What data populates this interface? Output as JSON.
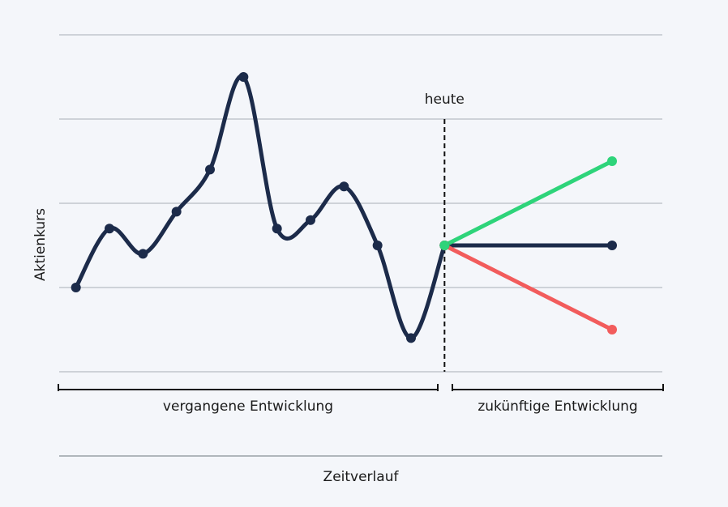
{
  "chart_data": {
    "type": "line",
    "y_label": "Aktienkurs",
    "x_label": "Zeitverlauf",
    "annotations": {
      "today": "heute",
      "past": "vergangene Entwicklung",
      "future": "zukünftige Entwicklung"
    },
    "today_x": 11,
    "xlim": [
      -0.5,
      17.5
    ],
    "ylim": [
      0,
      4
    ],
    "yticks": [
      0,
      1,
      2,
      3,
      4
    ],
    "grid": true,
    "series": [
      {
        "color": "#1c2b4a",
        "smooth": true,
        "x": [
          0,
          1,
          2,
          3,
          4,
          5,
          6,
          7,
          8,
          9,
          10,
          11
        ],
        "values": [
          1.0,
          1.7,
          1.4,
          1.9,
          2.4,
          3.5,
          1.7,
          1.8,
          2.2,
          1.5,
          0.4,
          1.5
        ]
      },
      {
        "color": "#1c2b4a",
        "smooth": false,
        "x": [
          11,
          16
        ],
        "values": [
          1.5,
          1.5
        ]
      },
      {
        "color": "#f25c5c",
        "smooth": false,
        "x": [
          11,
          16
        ],
        "values": [
          1.5,
          0.5
        ]
      },
      {
        "color": "#2ed47a",
        "smooth": false,
        "x": [
          11,
          16
        ],
        "values": [
          1.5,
          2.5
        ]
      }
    ]
  }
}
